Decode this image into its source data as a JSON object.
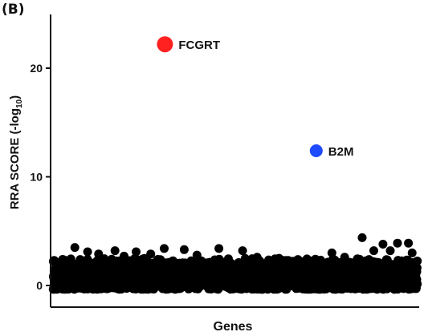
{
  "panel_label": "(B)",
  "chart_data": {
    "type": "scatter",
    "xlabel": "Genes",
    "ylabel": "RRA SCORE (-log",
    "ylabel_sub": "10",
    "ylabel_close": ")",
    "ylim": [
      -1.5,
      26
    ],
    "xlim": [
      0,
      1000
    ],
    "yticks": [
      0,
      10,
      20
    ],
    "grid": false,
    "legend": "none",
    "highlights": [
      {
        "label": "FCGRT",
        "x": 307,
        "y": 22.2,
        "color": "#ff2020"
      },
      {
        "label": "B2M",
        "x": 722,
        "y": 12.4,
        "color": "#1f4bff"
      }
    ],
    "background_points": {
      "color": "#000000",
      "count": 2200,
      "y_range": [
        0,
        2.5
      ],
      "outliers": [
        {
          "x": 60,
          "y": 3.5
        },
        {
          "x": 95,
          "y": 3.1
        },
        {
          "x": 125,
          "y": 2.9
        },
        {
          "x": 170,
          "y": 3.2
        },
        {
          "x": 195,
          "y": 2.7
        },
        {
          "x": 228,
          "y": 3.1
        },
        {
          "x": 268,
          "y": 2.9
        },
        {
          "x": 305,
          "y": 3.4
        },
        {
          "x": 360,
          "y": 3.3
        },
        {
          "x": 395,
          "y": 2.8
        },
        {
          "x": 455,
          "y": 3.4
        },
        {
          "x": 520,
          "y": 3.2
        },
        {
          "x": 560,
          "y": 2.6
        },
        {
          "x": 620,
          "y": 2.5
        },
        {
          "x": 765,
          "y": 3.0
        },
        {
          "x": 800,
          "y": 2.6
        },
        {
          "x": 848,
          "y": 4.4
        },
        {
          "x": 880,
          "y": 3.2
        },
        {
          "x": 905,
          "y": 3.8
        },
        {
          "x": 925,
          "y": 3.2
        },
        {
          "x": 945,
          "y": 3.9
        },
        {
          "x": 975,
          "y": 3.9
        },
        {
          "x": 985,
          "y": 3.0
        }
      ]
    }
  }
}
